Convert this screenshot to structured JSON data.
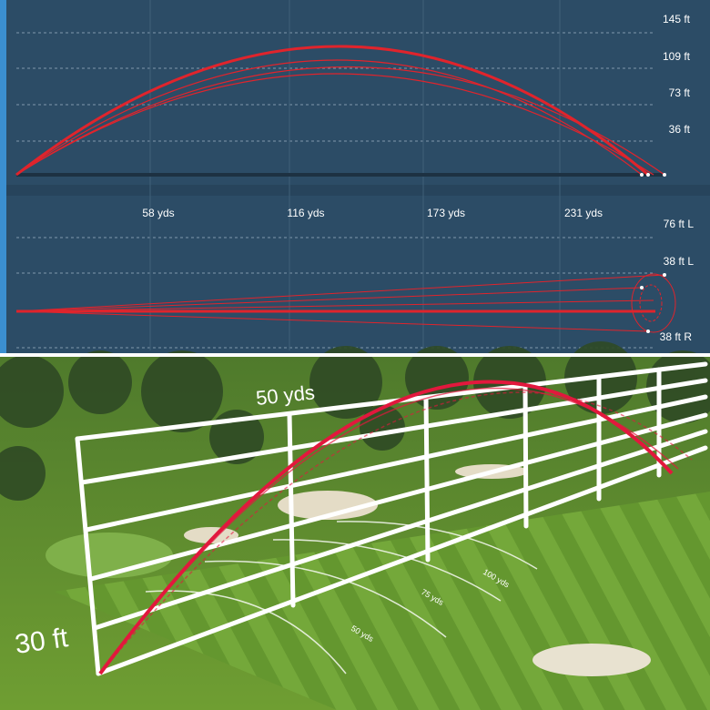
{
  "side_view": {
    "height_labels": [
      "145 ft",
      "109 ft",
      "73 ft",
      "36 ft"
    ],
    "distance_labels": [
      "58 yds",
      "116 yds",
      "173 yds",
      "231 yds"
    ]
  },
  "top_view": {
    "offset_labels": [
      "76 ft L",
      "38 ft L",
      "38 ft R"
    ]
  },
  "scene": {
    "wall_distance_label": "50 yds",
    "wall_height_label": "30 ft",
    "ground_labels": [
      "50 yds",
      "75 yds",
      "100 yds"
    ]
  }
}
